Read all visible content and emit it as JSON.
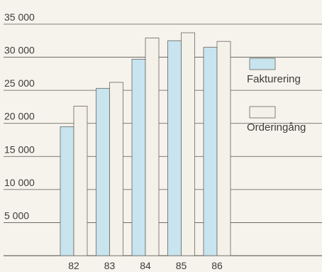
{
  "chart_data": {
    "type": "bar",
    "title": "",
    "xlabel": "",
    "ylabel": "",
    "categories": [
      "82",
      "83",
      "84",
      "85",
      "86"
    ],
    "ylim": [
      0,
      35000
    ],
    "yticks": [
      5000,
      10000,
      15000,
      20000,
      25000,
      30000,
      35000
    ],
    "ytick_labels": [
      "5 000",
      "10 000",
      "15 000",
      "20 000",
      "25 000",
      "30 000",
      "35 000"
    ],
    "grid": true,
    "legend_position": "right",
    "series": [
      {
        "name": "Fakturering",
        "color": "#c7e4ef",
        "values": [
          19500,
          25300,
          29700,
          32500,
          31500
        ]
      },
      {
        "name": "Orderingång",
        "color": "#f4f1e8",
        "values": [
          22600,
          26200,
          32900,
          33700,
          32400
        ]
      }
    ]
  }
}
